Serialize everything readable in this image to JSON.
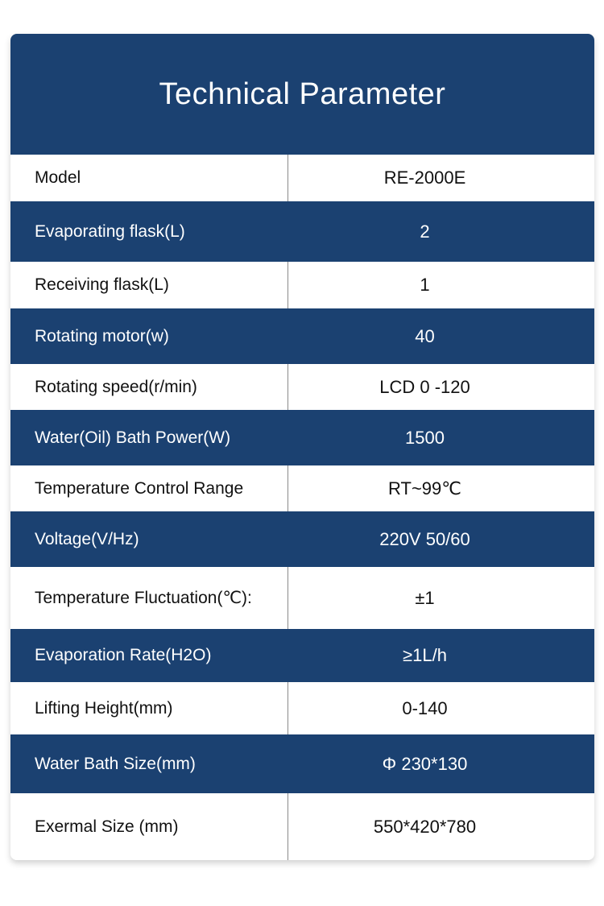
{
  "header": {
    "title": "Technical Parameter"
  },
  "table": {
    "rows": [
      [
        "Model",
        "RE-2000E"
      ],
      [
        "Evaporating flask(L)",
        "2"
      ],
      [
        "Receiving flask(L)",
        "1"
      ],
      [
        "Rotating motor(w)",
        "40"
      ],
      [
        "Rotating speed(r/min)",
        "LCD 0 -120"
      ],
      [
        "Water(Oil) Bath Power(W)",
        "1500"
      ],
      [
        "Temperature Control Range",
        "RT~99℃"
      ],
      [
        "Voltage(V/Hz)",
        "220V 50/60"
      ],
      [
        "Temperature Fluctuation(℃):",
        "±1"
      ],
      [
        "Evaporation Rate(H2O)",
        "≥1L/h"
      ],
      [
        "Lifting Height(mm)",
        "0-140"
      ],
      [
        "Water Bath Size(mm)",
        "Φ 230*130"
      ],
      [
        "Exermal Size (mm)",
        "550*420*780"
      ]
    ]
  }
}
